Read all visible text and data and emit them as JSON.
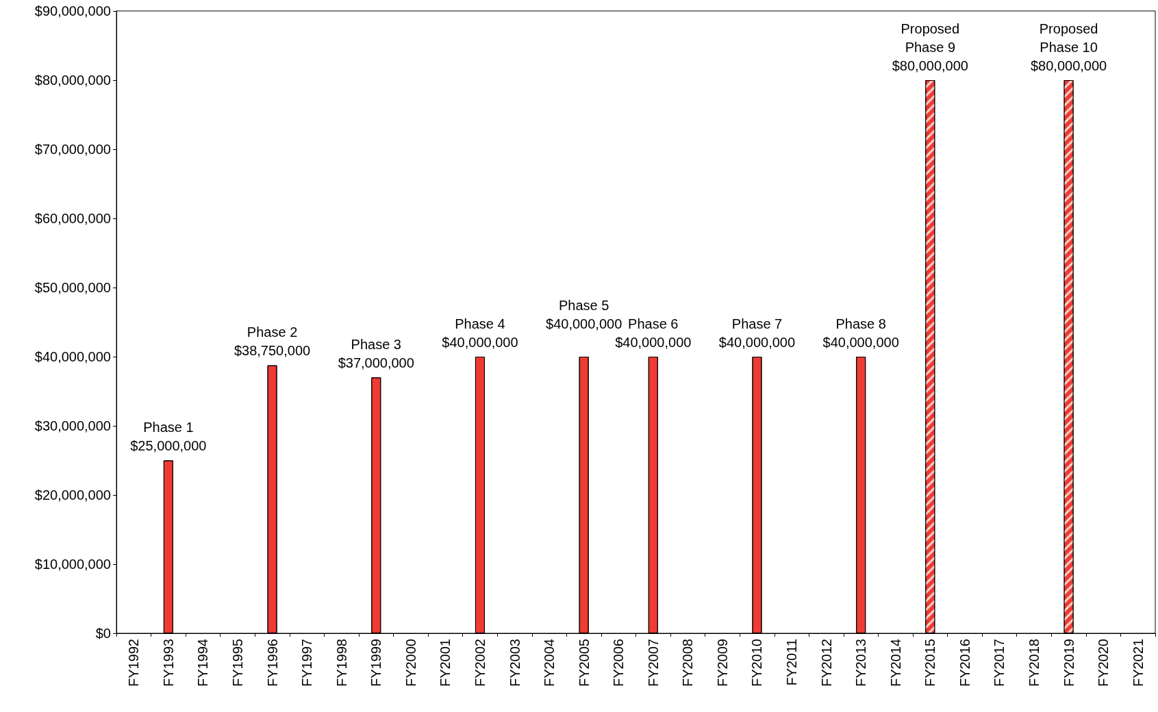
{
  "chart_data": {
    "type": "bar",
    "categories": [
      "FY1992",
      "FY1993",
      "FY1994",
      "FY1995",
      "FY1996",
      "FY1997",
      "FY1998",
      "FY1999",
      "FY2000",
      "FY2001",
      "FY2002",
      "FY2003",
      "FY2004",
      "FY2005",
      "FY2006",
      "FY2007",
      "FY2008",
      "FY2009",
      "FY2010",
      "FY2011",
      "FY2012",
      "FY2013",
      "FY2014",
      "FY2015",
      "FY2016",
      "FY2017",
      "FY2018",
      "FY2019",
      "FY2020",
      "FY2021"
    ],
    "series": [
      {
        "color": "#ee3b33",
        "values": [
          null,
          25000000,
          null,
          null,
          38750000,
          null,
          null,
          37000000,
          null,
          null,
          40000000,
          null,
          null,
          40000000,
          null,
          40000000,
          null,
          null,
          40000000,
          null,
          null,
          40000000,
          null,
          null,
          null,
          null,
          null,
          null,
          null,
          null
        ],
        "value_labels": [
          null,
          "Phase 1\n$25,000,000",
          null,
          null,
          "Phase 2\n$38,750,000",
          null,
          null,
          "Phase 3\n$37,000,000",
          null,
          null,
          "Phase 4\n$40,000,000",
          null,
          null,
          "Phase 5\n$40,000,000\n ",
          null,
          "Phase 6\n$40,000,000",
          null,
          null,
          "Phase 7\n$40,000,000",
          null,
          null,
          "Phase 8\n$40,000,000",
          null,
          null,
          null,
          null,
          null,
          null,
          null,
          null
        ]
      },
      {
        "color": "#ee3b33",
        "values": [
          null,
          null,
          null,
          null,
          null,
          null,
          null,
          null,
          null,
          null,
          null,
          null,
          null,
          null,
          null,
          null,
          null,
          null,
          null,
          null,
          null,
          null,
          null,
          80000000,
          null,
          null,
          null,
          80000000,
          null,
          null
        ],
        "value_labels": [
          null,
          null,
          null,
          null,
          null,
          null,
          null,
          null,
          null,
          null,
          null,
          null,
          null,
          null,
          null,
          null,
          null,
          null,
          null,
          null,
          null,
          null,
          null,
          "Proposed\nPhase 9\n$80,000,000",
          null,
          null,
          null,
          "Proposed\nPhase 10\n$80,000,000",
          null,
          null
        ]
      }
    ],
    "ylim": [
      0,
      90000000
    ],
    "yticks": [
      {
        "value": 0,
        "label": "$0"
      },
      {
        "value": 10000000,
        "label": "$10,000,000"
      },
      {
        "value": 20000000,
        "label": "$20,000,000"
      },
      {
        "value": 30000000,
        "label": "$30,000,000"
      },
      {
        "value": 40000000,
        "label": "$40,000,000"
      },
      {
        "value": 50000000,
        "label": "$50,000,000"
      },
      {
        "value": 60000000,
        "label": "$60,000,000"
      },
      {
        "value": 70000000,
        "label": "$70,000,000"
      },
      {
        "value": 80000000,
        "label": "$80,000,000"
      },
      {
        "value": 90000000,
        "label": "$90,000,000"
      }
    ],
    "grid": false
  }
}
